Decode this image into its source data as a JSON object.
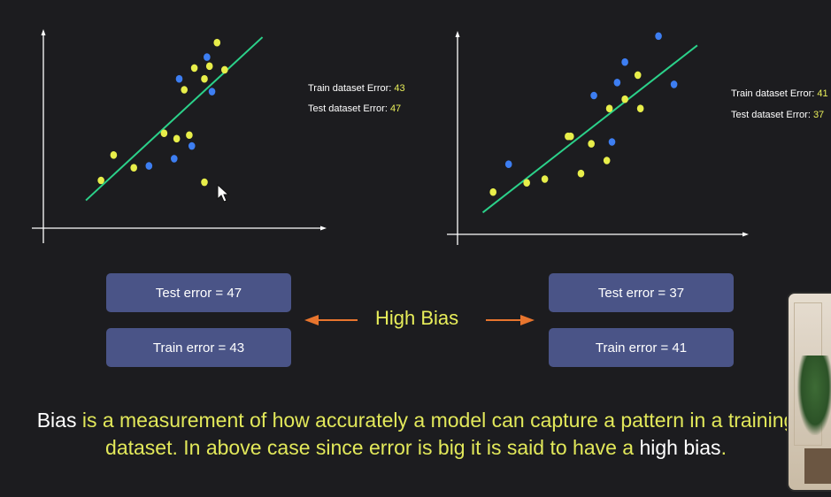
{
  "chart_data": [
    {
      "type": "scatter",
      "title": "",
      "xlabel": "",
      "ylabel": "",
      "xlim": [
        0,
        10
      ],
      "ylim": [
        0,
        10
      ],
      "grid": false,
      "series": [
        {
          "color": "#e8ee4a",
          "points": [
            [
              1.9,
              2.0
            ],
            [
              2.4,
              3.4
            ],
            [
              3.2,
              2.7
            ],
            [
              4.4,
              4.6
            ],
            [
              4.9,
              4.3
            ],
            [
              5.2,
              7.0
            ],
            [
              5.4,
              4.5
            ],
            [
              5.6,
              8.2
            ],
            [
              6.0,
              7.6
            ],
            [
              6.2,
              8.3
            ],
            [
              6.5,
              9.6
            ],
            [
              6.8,
              8.1
            ],
            [
              6.0,
              1.9
            ]
          ]
        },
        {
          "color": "#3d7ef2",
          "points": [
            [
              3.8,
              2.8
            ],
            [
              4.8,
              3.2
            ],
            [
              5.0,
              7.6
            ],
            [
              5.5,
              3.9
            ],
            [
              6.1,
              8.8
            ],
            [
              6.3,
              6.9
            ]
          ]
        }
      ],
      "trendline": {
        "color": "#2bd18a",
        "from": [
          1.3,
          0.9
        ],
        "to": [
          8.3,
          9.9
        ]
      },
      "labels": {
        "train_text": "Train dataset Error: ",
        "train_value": "43",
        "test_text": "Test dataset Error: ",
        "test_value": "47"
      }
    },
    {
      "type": "scatter",
      "title": "",
      "xlabel": "",
      "ylabel": "",
      "xlim": [
        0,
        10
      ],
      "ylim": [
        0,
        10
      ],
      "grid": false,
      "series": [
        {
          "color": "#e8ee4a",
          "points": [
            [
              1.0,
              1.8
            ],
            [
              2.3,
              2.3
            ],
            [
              3.0,
              2.5
            ],
            [
              4.0,
              4.8
            ],
            [
              4.4,
              2.8
            ],
            [
              4.8,
              4.4
            ],
            [
              5.4,
              3.5
            ],
            [
              5.5,
              6.3
            ],
            [
              6.1,
              6.8
            ],
            [
              6.6,
              8.1
            ],
            [
              6.7,
              6.3
            ],
            [
              3.9,
              4.8
            ]
          ]
        },
        {
          "color": "#3d7ef2",
          "points": [
            [
              1.6,
              3.3
            ],
            [
              4.9,
              7.0
            ],
            [
              5.6,
              4.5
            ],
            [
              5.8,
              7.7
            ],
            [
              6.1,
              8.8
            ],
            [
              7.4,
              10.2
            ],
            [
              8.0,
              7.6
            ]
          ]
        }
      ],
      "trendline": {
        "color": "#2bd18a",
        "from": [
          0.6,
          0.7
        ],
        "to": [
          8.9,
          9.7
        ]
      },
      "labels": {
        "train_text": "Train dataset Error: ",
        "train_value": "41",
        "test_text": "Test dataset Error: ",
        "test_value": "37"
      }
    }
  ],
  "boxes": {
    "left_test": "Test error = 47",
    "left_train": "Train error = 43",
    "right_test": "Test error = 37",
    "right_train": "Train error = 41"
  },
  "high_bias": "High Bias",
  "caption": {
    "w1": "Bias",
    "y1": " is a measurement of how accurately a model can capture a pattern in a training dataset. In above case since error is big it is said to have a ",
    "w2": "high",
    "y2": " ",
    "w3": "bias",
    "y3": "."
  },
  "colors": {
    "background": "#1c1c1f",
    "axis": "#ffffff",
    "box": "#4a5487",
    "arrow": "#e8752e",
    "highlight": "#e8ee5a"
  },
  "icons": {
    "cursor": "mouse-pointer-icon"
  }
}
